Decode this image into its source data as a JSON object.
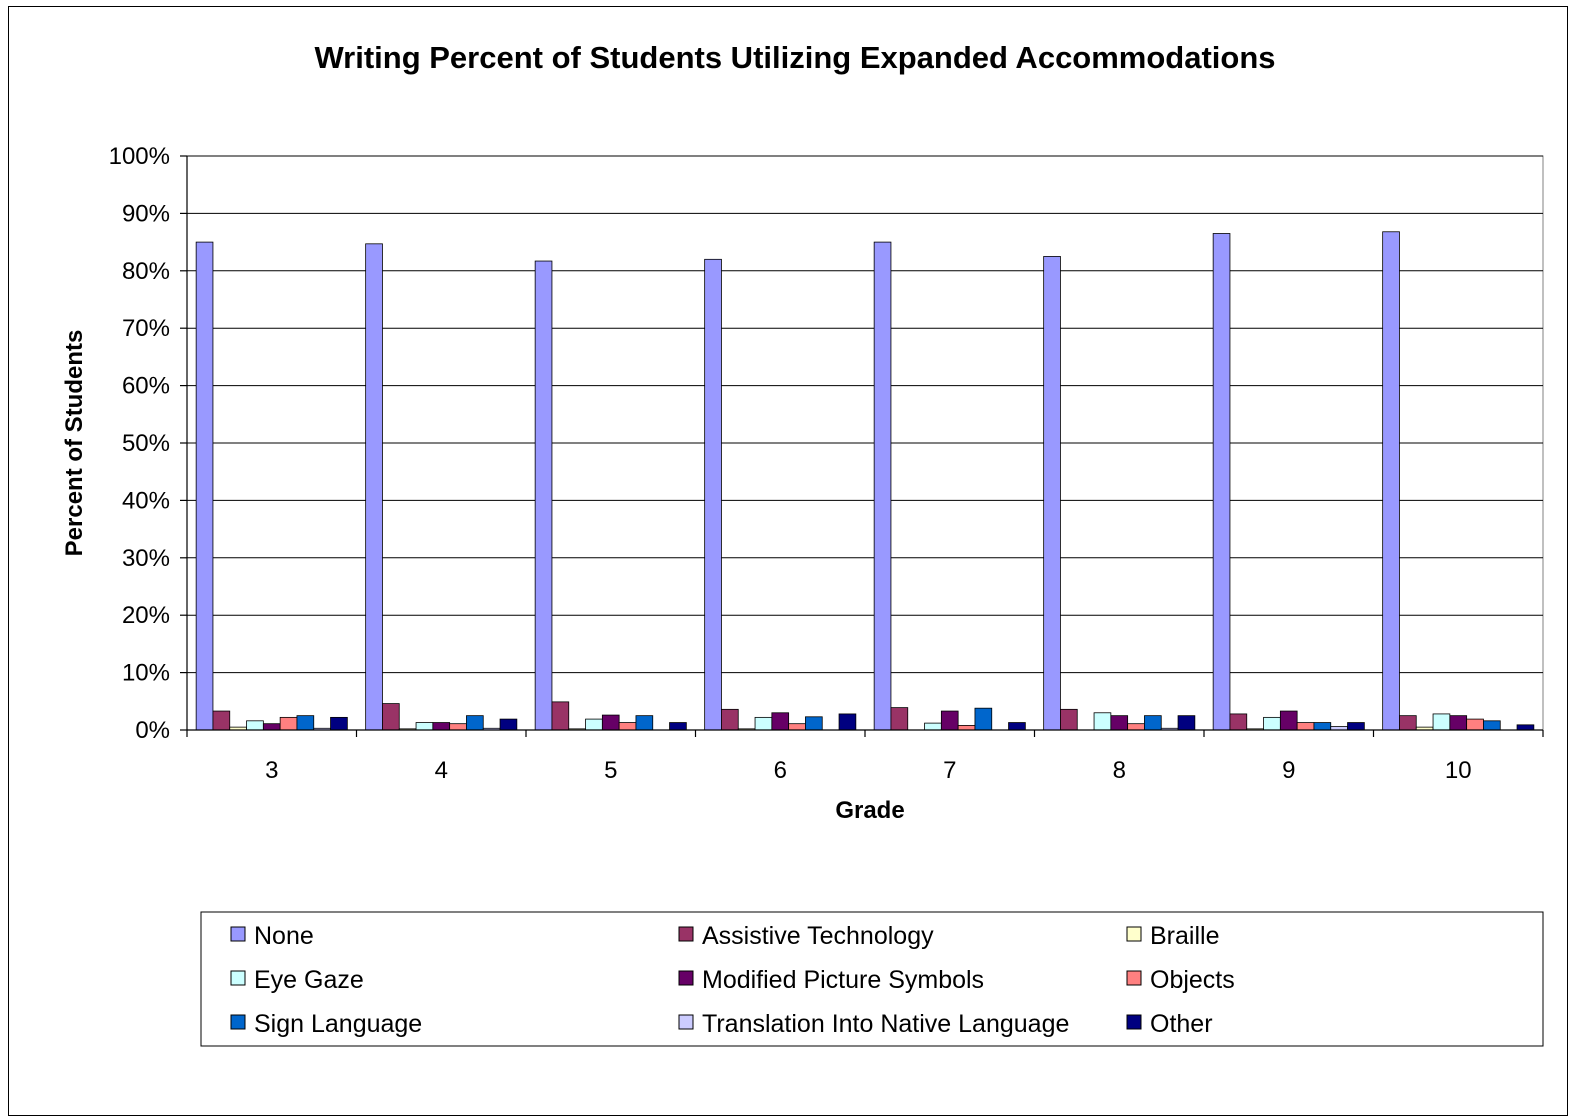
{
  "chart_data": {
    "type": "bar",
    "title": "Writing Percent of Students Utilizing Expanded Accommodations",
    "xlabel": "Grade",
    "ylabel": "Percent of Students",
    "ylim": [
      0,
      100
    ],
    "ytick_labels": [
      "0%",
      "10%",
      "20%",
      "30%",
      "40%",
      "50%",
      "60%",
      "70%",
      "80%",
      "90%",
      "100%"
    ],
    "grid": true,
    "legend_position": "bottom",
    "categories": [
      "3",
      "4",
      "5",
      "6",
      "7",
      "8",
      "9",
      "10"
    ],
    "series": [
      {
        "name": "None",
        "color": "#9999ff",
        "values": [
          85,
          84.7,
          81.7,
          82,
          85,
          82.5,
          86.5,
          86.8
        ]
      },
      {
        "name": "Assistive Technology",
        "color": "#993366",
        "values": [
          3.3,
          4.6,
          4.9,
          3.6,
          3.9,
          3.6,
          2.8,
          2.5
        ]
      },
      {
        "name": "Braille",
        "color": "#ffffcc",
        "values": [
          0.5,
          0.2,
          0.2,
          0.2,
          0,
          0,
          0.2,
          0.5
        ]
      },
      {
        "name": "Eye Gaze",
        "color": "#ccffff",
        "values": [
          1.6,
          1.3,
          1.9,
          2.2,
          1.2,
          3,
          2.2,
          2.8
        ]
      },
      {
        "name": "Modified Picture Symbols",
        "color": "#660066",
        "values": [
          1.1,
          1.3,
          2.6,
          3,
          3.3,
          2.5,
          3.3,
          2.5
        ]
      },
      {
        "name": "Objects",
        "color": "#ff8080",
        "values": [
          2.2,
          1.1,
          1.3,
          1.1,
          0.8,
          1.1,
          1.3,
          1.9
        ]
      },
      {
        "name": "Sign Language",
        "color": "#0066cc",
        "values": [
          2.5,
          2.5,
          2.5,
          2.3,
          3.8,
          2.5,
          1.3,
          1.6
        ]
      },
      {
        "name": "Translation Into Native Language",
        "color": "#ccccff",
        "values": [
          0.3,
          0.3,
          0,
          0,
          0,
          0.3,
          0.6,
          0
        ]
      },
      {
        "name": "Other",
        "color": "#000080",
        "values": [
          2.2,
          1.9,
          1.3,
          2.8,
          1.3,
          2.5,
          1.3,
          0.9
        ]
      }
    ]
  }
}
